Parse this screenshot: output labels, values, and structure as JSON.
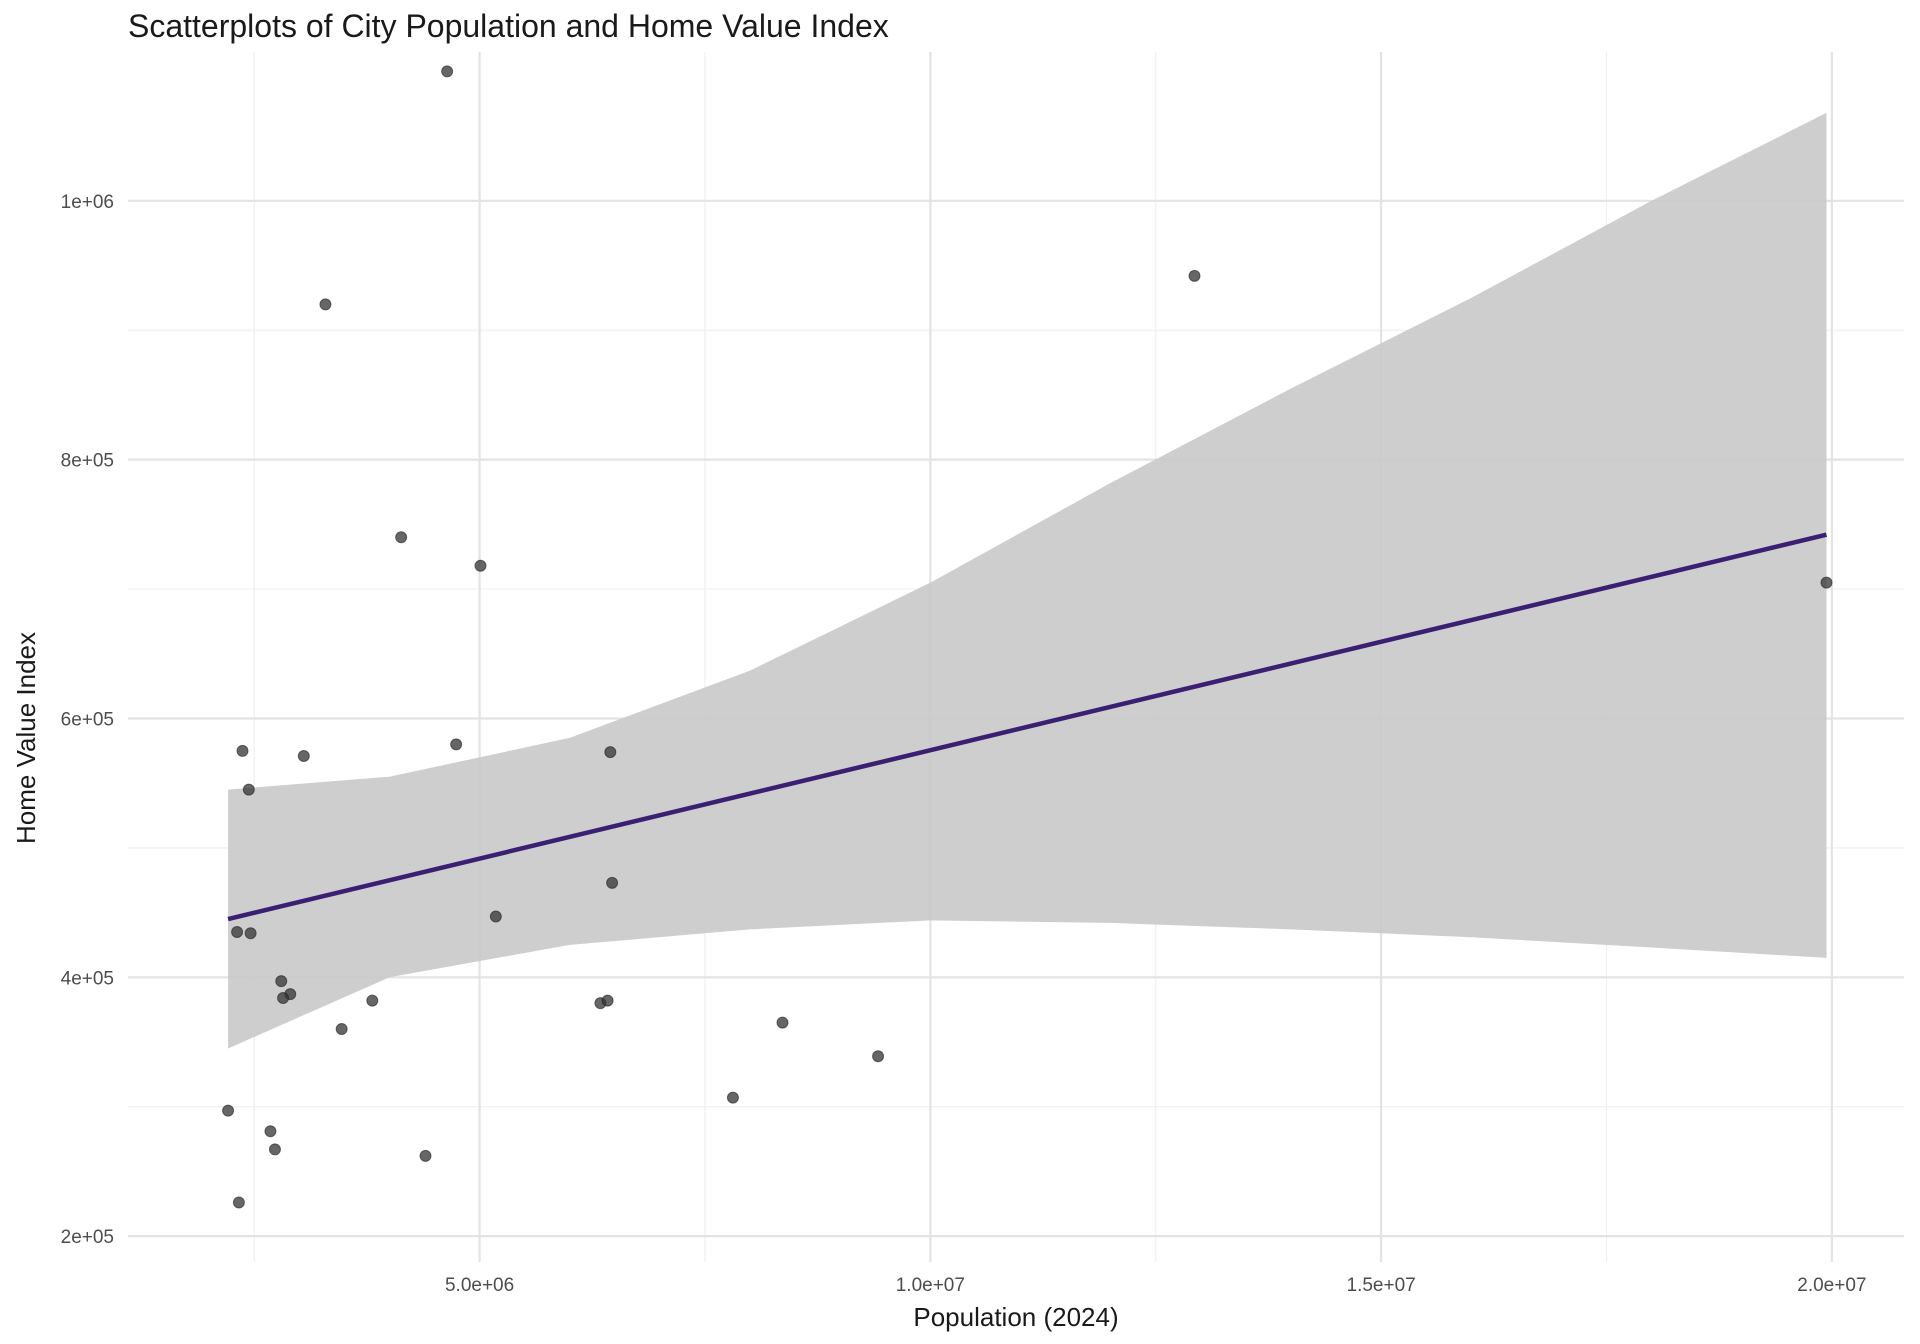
{
  "chart_data": {
    "type": "scatter",
    "title": "Scatterplots of City Population and Home Value Index",
    "xlabel": "Population (2024)",
    "ylabel": "Home Value Index",
    "xlim": [
      1100000,
      20800000
    ],
    "ylim": [
      180000,
      1115000
    ],
    "x_ticks": [
      5000000,
      10000000,
      15000000,
      20000000
    ],
    "x_tick_labels": [
      "5.0e+06",
      "1.0e+07",
      "1.5e+07",
      "2.0e+07"
    ],
    "x_minor": [
      2500000,
      7500000,
      12500000,
      17500000
    ],
    "y_ticks": [
      200000,
      400000,
      600000,
      800000,
      1000000
    ],
    "y_tick_labels": [
      "2e+05",
      "4e+05",
      "6e+05",
      "8e+05",
      "1e+06"
    ],
    "y_minor": [
      300000,
      500000,
      700000,
      900000
    ],
    "grid": true,
    "points": [
      {
        "x": 4640000,
        "y": 1100000
      },
      {
        "x": 12930000,
        "y": 942000
      },
      {
        "x": 3290000,
        "y": 920000
      },
      {
        "x": 4130000,
        "y": 740000
      },
      {
        "x": 5010000,
        "y": 718000
      },
      {
        "x": 19940000,
        "y": 705000
      },
      {
        "x": 2370000,
        "y": 575000
      },
      {
        "x": 4740000,
        "y": 580000
      },
      {
        "x": 6450000,
        "y": 574000
      },
      {
        "x": 3050000,
        "y": 571000
      },
      {
        "x": 2440000,
        "y": 545000
      },
      {
        "x": 6470000,
        "y": 473000
      },
      {
        "x": 5180000,
        "y": 447000
      },
      {
        "x": 2310000,
        "y": 435000
      },
      {
        "x": 2460000,
        "y": 434000
      },
      {
        "x": 2800000,
        "y": 397000
      },
      {
        "x": 2900000,
        "y": 387000
      },
      {
        "x": 2820000,
        "y": 384000
      },
      {
        "x": 3810000,
        "y": 382000
      },
      {
        "x": 6340000,
        "y": 380000
      },
      {
        "x": 6420000,
        "y": 382000
      },
      {
        "x": 8360000,
        "y": 365000
      },
      {
        "x": 3470000,
        "y": 360000
      },
      {
        "x": 9420000,
        "y": 339000
      },
      {
        "x": 7810000,
        "y": 307000
      },
      {
        "x": 2210000,
        "y": 297000
      },
      {
        "x": 2680000,
        "y": 281000
      },
      {
        "x": 2730000,
        "y": 267000
      },
      {
        "x": 4400000,
        "y": 262000
      },
      {
        "x": 2330000,
        "y": 226000
      }
    ],
    "trend_line": {
      "x": [
        2210000,
        19940000
      ],
      "y": [
        445000,
        742000
      ]
    },
    "confidence_band": {
      "x": [
        2210000,
        4000000,
        6000000,
        8000000,
        10000000,
        12000000,
        14000000,
        16000000,
        18000000,
        19940000
      ],
      "upper": [
        545000,
        555000,
        585000,
        637000,
        705000,
        782000,
        855000,
        925000,
        1000000,
        1068000
      ],
      "lower": [
        345000,
        400000,
        425000,
        437000,
        444000,
        442000,
        437000,
        431000,
        423000,
        415000
      ]
    },
    "colors": {
      "point": "#333333",
      "line": "#3b1f73",
      "band": "#c9c9c9",
      "grid_major": "#e3e3e3",
      "grid_minor": "#efefef"
    }
  }
}
